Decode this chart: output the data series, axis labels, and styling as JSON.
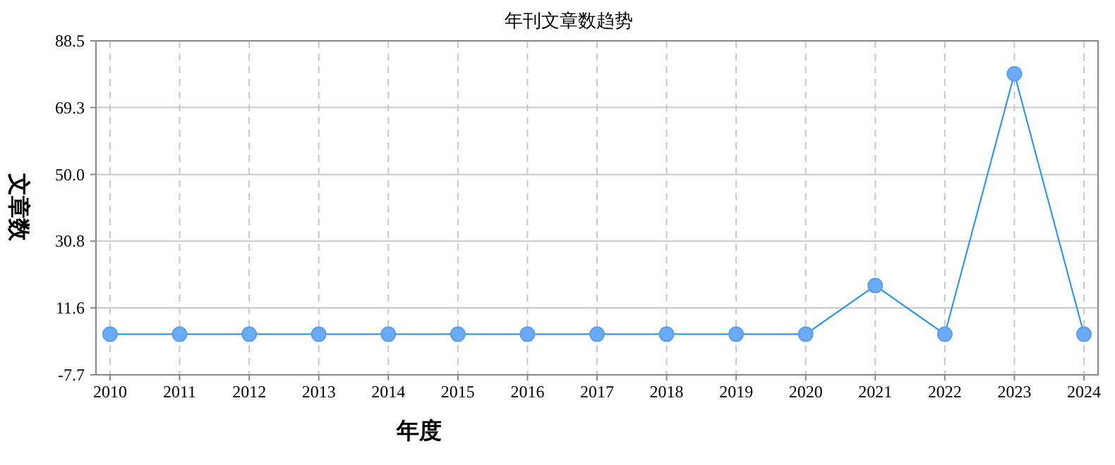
{
  "chart_data": {
    "type": "line",
    "title": "年刊文章数趋势",
    "xlabel": "年度",
    "ylabel": "文章数",
    "categories": [
      "2010",
      "2011",
      "2012",
      "2013",
      "2014",
      "2015",
      "2016",
      "2017",
      "2018",
      "2019",
      "2020",
      "2021",
      "2022",
      "2023",
      "2024"
    ],
    "series": [
      {
        "color": "#1e90ff",
        "values": [
          4,
          4,
          4,
          4,
          4,
          4,
          4,
          4,
          4,
          4,
          4,
          18,
          4,
          79,
          4
        ]
      }
    ],
    "ylim": [
      -7.7,
      88.5
    ],
    "yticks": [
      -7.7,
      11.6,
      30.8,
      {
        "value": 50,
        "label": "50.0"
      },
      69.3,
      88.5
    ],
    "grid": true,
    "marker": "circle",
    "line_style": "solid"
  }
}
